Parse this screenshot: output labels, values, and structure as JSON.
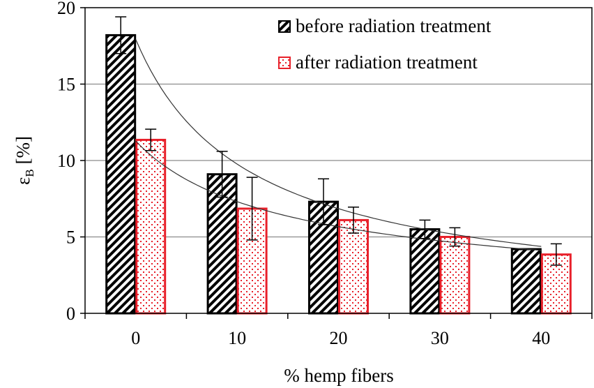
{
  "chart_data": {
    "type": "bar",
    "title": "",
    "xlabel": "% hemp fibers",
    "ylabel_main": "ε",
    "ylabel_sub": "B",
    "ylabel_unit": " [%]",
    "categories": [
      "0",
      "10",
      "20",
      "30",
      "40"
    ],
    "ylim": [
      0,
      20
    ],
    "yticks": [
      "0",
      "5",
      "10",
      "15",
      "20"
    ],
    "grid": true,
    "legend_position": "top-right",
    "series": [
      {
        "name": "before radiation treatment",
        "color": "#000000",
        "pattern": "diagonal-hatch",
        "values": [
          18.2,
          9.1,
          7.3,
          5.5,
          4.2
        ],
        "errors": [
          1.2,
          1.5,
          1.5,
          0.6,
          0.0
        ]
      },
      {
        "name": "after radiation treatment",
        "color": "#e8202a",
        "pattern": "dots",
        "values": [
          11.35,
          6.85,
          6.1,
          5.0,
          3.85
        ],
        "errors": [
          0.7,
          2.05,
          0.85,
          0.6,
          0.7
        ]
      }
    ],
    "trendlines": [
      {
        "series": "before radiation treatment",
        "type": "power"
      },
      {
        "series": "after radiation treatment",
        "type": "power"
      }
    ]
  }
}
